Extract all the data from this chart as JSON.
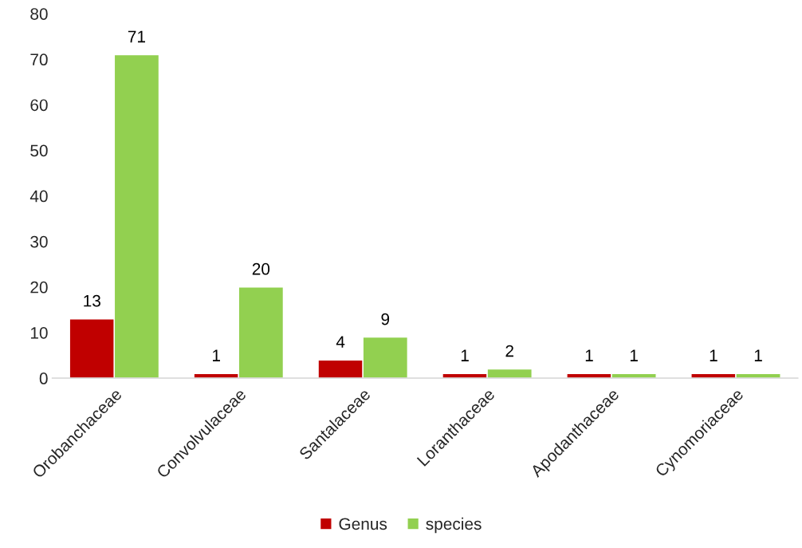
{
  "chart_data": {
    "type": "bar",
    "categories": [
      "Orobanchaceae",
      "Convolvulaceae",
      "Santalaceae",
      "Loranthaceae",
      "Apodanthaceae",
      "Cynomoriaceae"
    ],
    "series": [
      {
        "name": "Genus",
        "color": "#c00000",
        "values": [
          13,
          1,
          4,
          1,
          1,
          1
        ]
      },
      {
        "name": "species",
        "color": "#92d050",
        "values": [
          71,
          20,
          9,
          2,
          1,
          1
        ]
      }
    ],
    "ylim": [
      0,
      80
    ],
    "yticks": [
      0,
      10,
      20,
      30,
      40,
      50,
      60,
      70,
      80
    ],
    "data_labels": true,
    "grid": false,
    "legend": "bottom"
  }
}
